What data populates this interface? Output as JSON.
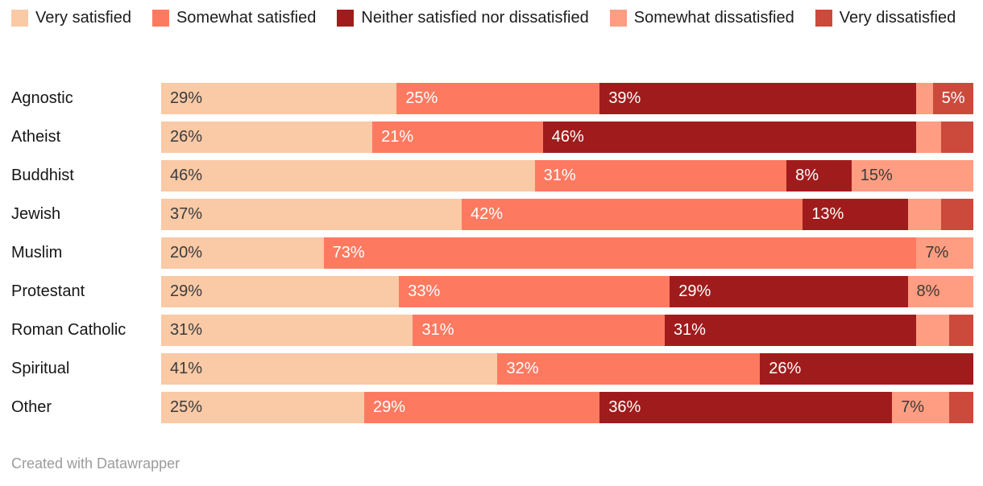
{
  "legend": {
    "note": "legend entries mirror chart_data.series"
  },
  "chart_data": {
    "type": "bar",
    "stacked": true,
    "orientation": "horizontal",
    "unit": "%",
    "xlim": [
      0,
      100
    ],
    "grid": false,
    "legend_position": "top",
    "series": [
      {
        "name": "Very satisfied",
        "color": "#fac9a5",
        "label_tone": "dark"
      },
      {
        "name": "Somewhat satisfied",
        "color": "#fd7a61",
        "label_tone": "light"
      },
      {
        "name": "Neither satisfied nor dissatisfied",
        "color": "#a01c1c",
        "label_tone": "light"
      },
      {
        "name": "Somewhat dissatisfied",
        "color": "#fe9d81",
        "label_tone": "dark"
      },
      {
        "name": "Very dissatisfied",
        "color": "#cc4a3c",
        "label_tone": "light"
      }
    ],
    "categories": [
      "Agnostic",
      "Atheist",
      "Buddhist",
      "Jewish",
      "Muslim",
      "Protestant",
      "Roman Catholic",
      "Spiritual",
      "Other"
    ],
    "rows": [
      {
        "category": "Agnostic",
        "values": [
          29,
          25,
          39,
          2,
          5
        ],
        "labels": [
          "29%",
          "25%",
          "39%",
          "",
          "5%"
        ]
      },
      {
        "category": "Atheist",
        "values": [
          26,
          21,
          46,
          3,
          4
        ],
        "labels": [
          "26%",
          "21%",
          "46%",
          "",
          ""
        ]
      },
      {
        "category": "Buddhist",
        "values": [
          46,
          31,
          8,
          15,
          0
        ],
        "labels": [
          "46%",
          "31%",
          "8%",
          "15%",
          ""
        ]
      },
      {
        "category": "Jewish",
        "values": [
          37,
          42,
          13,
          4,
          4
        ],
        "labels": [
          "37%",
          "42%",
          "13%",
          "",
          ""
        ]
      },
      {
        "category": "Muslim",
        "values": [
          20,
          73,
          0,
          7,
          0
        ],
        "labels": [
          "20%",
          "73%",
          "",
          "7%",
          ""
        ]
      },
      {
        "category": "Protestant",
        "values": [
          29,
          33,
          29,
          8,
          0
        ],
        "labels": [
          "29%",
          "33%",
          "29%",
          "8%",
          ""
        ]
      },
      {
        "category": "Roman Catholic",
        "values": [
          31,
          31,
          31,
          4,
          3
        ],
        "labels": [
          "31%",
          "31%",
          "31%",
          "",
          ""
        ]
      },
      {
        "category": "Spiritual",
        "values": [
          41,
          32,
          26,
          0,
          0
        ],
        "labels": [
          "41%",
          "32%",
          "26%",
          "",
          ""
        ]
      },
      {
        "category": "Other",
        "values": [
          25,
          29,
          36,
          7,
          3
        ],
        "labels": [
          "25%",
          "29%",
          "36%",
          "7%",
          ""
        ]
      }
    ]
  },
  "colors": {
    "label_dark": "#3b3b3b",
    "label_light": "#ffffff",
    "category_text": "#161616",
    "footer_text": "#9c9c9c"
  },
  "footer": {
    "credit": "Created with Datawrapper"
  }
}
